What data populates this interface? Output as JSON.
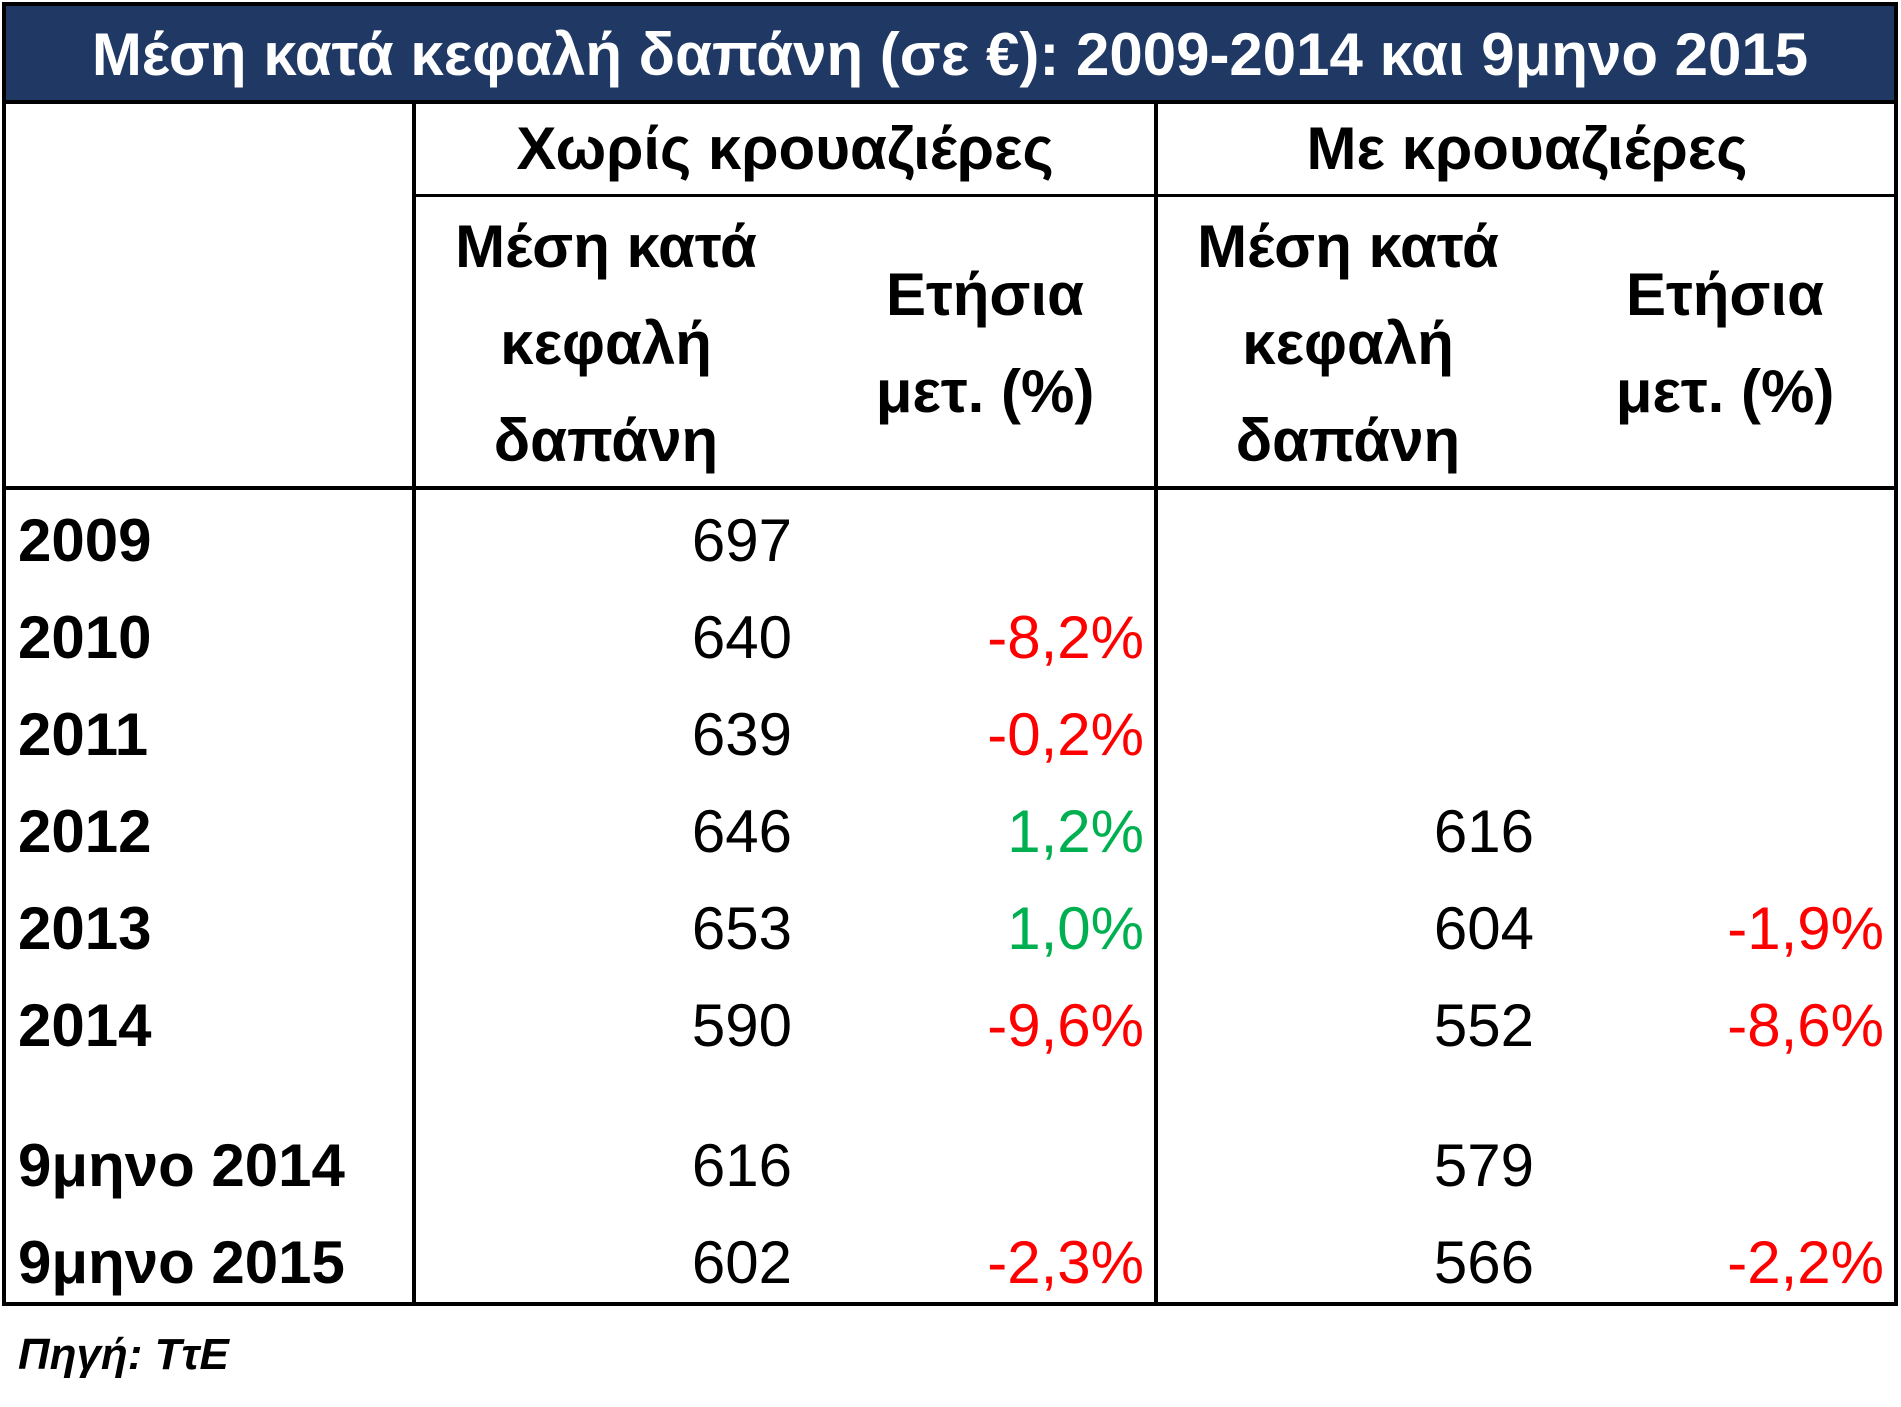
{
  "title": "Μέση κατά κεφαλή δαπάνη (σε €): 2009-2014 και 9μηνο 2015",
  "colors": {
    "header_bg": "#1f3864",
    "negative": "#ff0000",
    "positive": "#00b050"
  },
  "source": "Πηγή: ΤτΕ",
  "chart_data": {
    "type": "table",
    "title": "Μέση κατά κεφαλή δαπάνη (σε €): 2009-2014 και 9μηνο 2015",
    "group_headers": [
      "Χωρίς κρουαζιέρες",
      "Με κρουαζιέρες"
    ],
    "sub_headers": [
      [
        "Μέση κατά",
        "κεφαλή",
        "δαπάνη"
      ],
      [
        "Ετήσια",
        "μετ. (%)"
      ],
      [
        "Μέση κατά",
        "κεφαλή",
        "δαπάνη"
      ],
      [
        "Ετήσια",
        "μετ. (%)"
      ]
    ],
    "rows": [
      {
        "label": "2009",
        "spend_no_cruise": "697",
        "change_no_cruise": "",
        "spend_cruise": "",
        "change_cruise": ""
      },
      {
        "label": "2010",
        "spend_no_cruise": "640",
        "change_no_cruise": "-8,2%",
        "spend_cruise": "",
        "change_cruise": ""
      },
      {
        "label": "2011",
        "spend_no_cruise": "639",
        "change_no_cruise": "-0,2%",
        "spend_cruise": "",
        "change_cruise": ""
      },
      {
        "label": "2012",
        "spend_no_cruise": "646",
        "change_no_cruise": "1,2%",
        "spend_cruise": "616",
        "change_cruise": ""
      },
      {
        "label": "2013",
        "spend_no_cruise": "653",
        "change_no_cruise": "1,0%",
        "spend_cruise": "604",
        "change_cruise": "-1,9%"
      },
      {
        "label": "2014",
        "spend_no_cruise": "590",
        "change_no_cruise": "-9,6%",
        "spend_cruise": "552",
        "change_cruise": "-8,6%"
      },
      {
        "label": "9μηνο 2014",
        "spend_no_cruise": "616",
        "change_no_cruise": "",
        "spend_cruise": "579",
        "change_cruise": ""
      },
      {
        "label": "9μηνο 2015",
        "spend_no_cruise": "602",
        "change_no_cruise": "-2,3%",
        "spend_cruise": "566",
        "change_cruise": "-2,2%"
      }
    ]
  }
}
